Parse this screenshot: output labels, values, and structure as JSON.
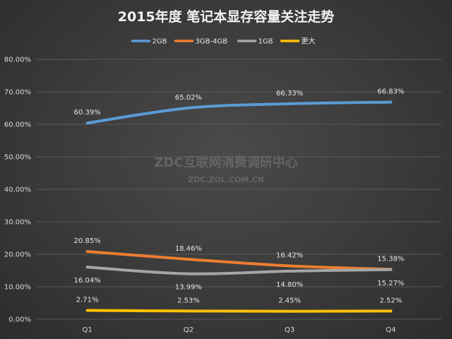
{
  "chart_data": {
    "type": "line",
    "title": "2015年度 笔记本显存容量关注走势",
    "categories": [
      "Q1",
      "Q2",
      "Q3",
      "Q4"
    ],
    "ylim": [
      0,
      80
    ],
    "y_ticks": [
      "0.00%",
      "10.00%",
      "20.00%",
      "30.00%",
      "40.00%",
      "50.00%",
      "60.00%",
      "70.00%",
      "80.00%"
    ],
    "grid": true,
    "legend_position": "top-center",
    "series": [
      {
        "name": "2GB",
        "color": "#5b9bd5",
        "values": [
          60.39,
          65.02,
          66.33,
          66.83
        ],
        "labels": [
          "60.39%",
          "65.02%",
          "66.33%",
          "66.83%"
        ],
        "label_side": "above"
      },
      {
        "name": "3GB-4GB",
        "color": "#ed7d31",
        "values": [
          20.85,
          18.46,
          16.42,
          15.38
        ],
        "labels": [
          "20.85%",
          "18.46%",
          "16.42%",
          "15.38%"
        ],
        "label_side": "above"
      },
      {
        "name": "1GB",
        "color": "#a5a5a5",
        "values": [
          16.04,
          13.99,
          14.8,
          15.27
        ],
        "labels": [
          "16.04%",
          "13.99%",
          "14.80%",
          "15.27%"
        ],
        "label_side": "below"
      },
      {
        "name": "更大",
        "color": "#ffc000",
        "values": [
          2.71,
          2.53,
          2.45,
          2.52
        ],
        "labels": [
          "2.71%",
          "2.53%",
          "2.45%",
          "2.52%"
        ],
        "label_side": "above"
      }
    ],
    "watermark": {
      "line1": "ZDC互联网消费调研中心",
      "line2": "ZDC.ZOL.COM.CN"
    }
  }
}
